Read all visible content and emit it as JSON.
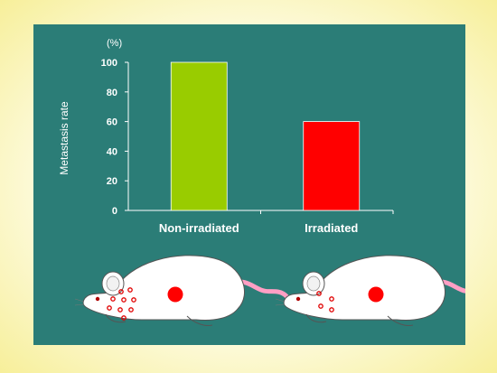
{
  "chart_data": {
    "type": "bar",
    "categories": [
      "Non-irradiated",
      "Irradiated"
    ],
    "values": [
      100,
      60
    ],
    "colors": [
      "#99cc00",
      "#ff0000"
    ],
    "ylabel": "Metastasis rate",
    "unit": "(%)",
    "ylim": [
      0,
      100
    ],
    "yticks": [
      "0",
      "20",
      "40",
      "60",
      "80",
      "100"
    ],
    "grid": false,
    "legend": "none"
  },
  "illustration": {
    "mice": [
      {
        "icon": "mouse-icon",
        "lung_spots": 9,
        "tumor_color": "#ff0000"
      },
      {
        "icon": "mouse-icon",
        "lung_spots": 4,
        "tumor_color": "#ff0000"
      }
    ]
  }
}
